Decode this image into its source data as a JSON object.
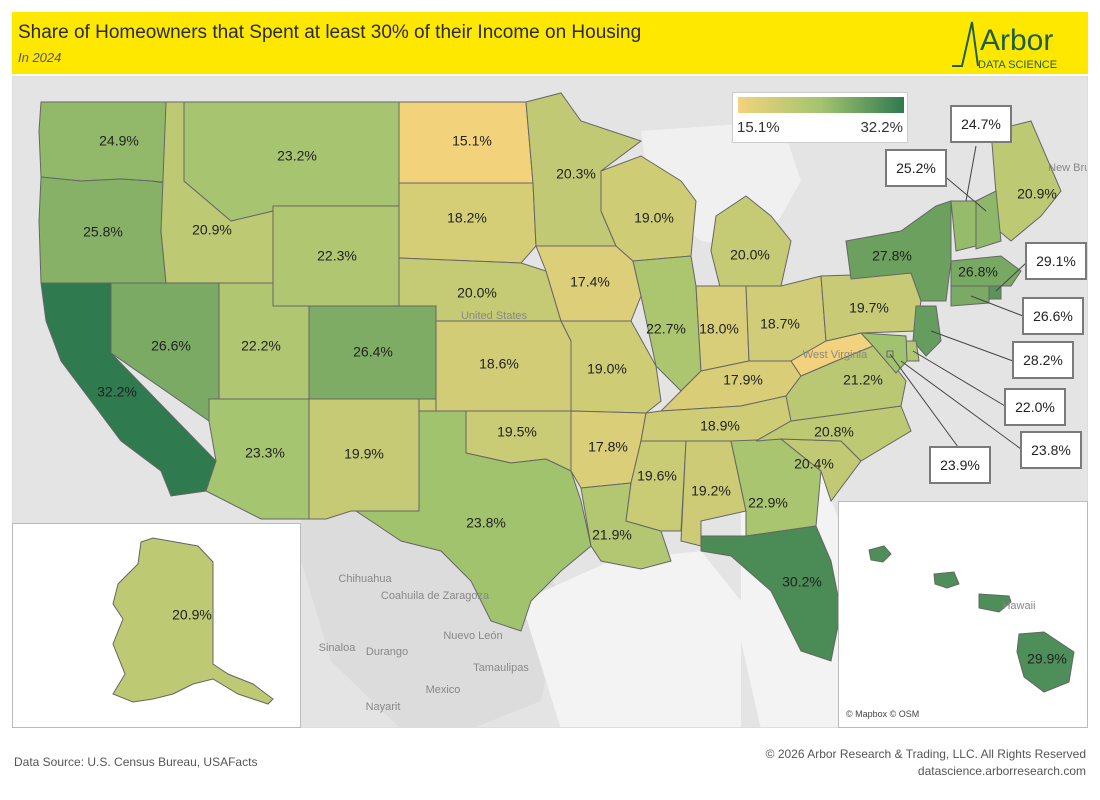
{
  "header": {
    "title": "Share of Homeowners that Spent at least 30% of their Income on Housing",
    "subtitle": "In 2024",
    "logo_text": "Arbor",
    "logo_subtext": "DATA SCIENCE"
  },
  "legend": {
    "min_label": "15.1%",
    "max_label": "32.2%",
    "min_value": 15.1,
    "max_value": 32.2,
    "color_low": "#f3d27c",
    "color_mid": "#a3c46f",
    "color_high": "#2f7a4f"
  },
  "basemap_labels": {
    "united_states": "United States",
    "mexico": "Mexico",
    "chihuahua": "Chihuahua",
    "coahuila": "Coahuila de Zaragoza",
    "nuevo_leon": "Nuevo León",
    "sinaloa": "Sinaloa",
    "durango": "Durango",
    "tamaulipas": "Tamaulipas",
    "nayarit": "Nayarit",
    "new_brunswick": "New Brunsw",
    "west_virginia": "West Virginia",
    "hawaii": "Hawaii"
  },
  "attribution": "© Mapbox © OSM",
  "footer": {
    "source": "Data Source: U.S. Census Bureau, USAFacts",
    "copyright": "© 2026 Arbor Research & Trading, LLC. All Rights Reserved",
    "website": "datascience.arborresearch.com"
  },
  "states": [
    {
      "id": "WA",
      "value": 24.9,
      "label": "24.9%"
    },
    {
      "id": "OR",
      "value": 25.8,
      "label": "25.8%"
    },
    {
      "id": "CA",
      "value": 32.2,
      "label": "32.2%"
    },
    {
      "id": "ID",
      "value": 20.9,
      "label": "20.9%"
    },
    {
      "id": "NV",
      "value": 26.6,
      "label": "26.6%"
    },
    {
      "id": "MT",
      "value": 23.2,
      "label": "23.2%"
    },
    {
      "id": "WY",
      "value": 22.3,
      "label": "22.3%"
    },
    {
      "id": "UT",
      "value": 22.2,
      "label": "22.2%"
    },
    {
      "id": "AZ",
      "value": 23.3,
      "label": "23.3%"
    },
    {
      "id": "CO",
      "value": 26.4,
      "label": "26.4%"
    },
    {
      "id": "NM",
      "value": 19.9,
      "label": "19.9%"
    },
    {
      "id": "ND",
      "value": 15.1,
      "label": "15.1%"
    },
    {
      "id": "SD",
      "value": 18.2,
      "label": "18.2%"
    },
    {
      "id": "NE",
      "value": 20.0,
      "label": "20.0%"
    },
    {
      "id": "KS",
      "value": 18.6,
      "label": "18.6%"
    },
    {
      "id": "OK",
      "value": 19.5,
      "label": "19.5%"
    },
    {
      "id": "TX",
      "value": 23.8,
      "label": "23.8%"
    },
    {
      "id": "MN",
      "value": 20.3,
      "label": "20.3%"
    },
    {
      "id": "IA",
      "value": 17.4,
      "label": "17.4%"
    },
    {
      "id": "MO",
      "value": 19.0,
      "label": "19.0%"
    },
    {
      "id": "AR",
      "value": 17.8,
      "label": "17.8%"
    },
    {
      "id": "LA",
      "value": 21.9,
      "label": "21.9%"
    },
    {
      "id": "WI",
      "value": 19.0,
      "label": "19.0%"
    },
    {
      "id": "IL",
      "value": 22.7,
      "label": "22.7%"
    },
    {
      "id": "MI",
      "value": 20.0,
      "label": "20.0%"
    },
    {
      "id": "IN",
      "value": 18.0,
      "label": "18.0%"
    },
    {
      "id": "OH",
      "value": 18.7,
      "label": "18.7%"
    },
    {
      "id": "KY",
      "value": 17.9,
      "label": "17.9%"
    },
    {
      "id": "TN",
      "value": 18.9,
      "label": "18.9%"
    },
    {
      "id": "MS",
      "value": 19.6,
      "label": "19.6%"
    },
    {
      "id": "AL",
      "value": 19.2,
      "label": "19.2%"
    },
    {
      "id": "GA",
      "value": 22.9,
      "label": "22.9%"
    },
    {
      "id": "FL",
      "value": 30.2,
      "label": "30.2%"
    },
    {
      "id": "SC",
      "value": 20.4,
      "label": "20.4%"
    },
    {
      "id": "NC",
      "value": 20.8,
      "label": "20.8%"
    },
    {
      "id": "VA",
      "value": 21.2,
      "label": "21.2%"
    },
    {
      "id": "WV",
      "value": 15.2,
      "label": ""
    },
    {
      "id": "PA",
      "value": 19.7,
      "label": "19.7%"
    },
    {
      "id": "NY",
      "value": 27.8,
      "label": "27.8%"
    },
    {
      "id": "ME",
      "value": 20.9,
      "label": "20.9%"
    },
    {
      "id": "VT",
      "value": 24.7,
      "label": "24.7%"
    },
    {
      "id": "NH",
      "value": 25.2,
      "label": "25.2%"
    },
    {
      "id": "MA",
      "value": 26.8,
      "label": "26.8%"
    },
    {
      "id": "RI",
      "value": 29.1,
      "label": "29.1%"
    },
    {
      "id": "CT",
      "value": 26.6,
      "label": "26.6%"
    },
    {
      "id": "NJ",
      "value": 28.2,
      "label": "28.2%"
    },
    {
      "id": "DE",
      "value": 22.0,
      "label": "22.0%"
    },
    {
      "id": "MD",
      "value": 23.8,
      "label": "23.8%"
    },
    {
      "id": "DC",
      "value": 23.9,
      "label": "23.9%"
    },
    {
      "id": "AK",
      "value": 20.9,
      "label": "20.9%"
    },
    {
      "id": "HI",
      "value": 29.9,
      "label": "29.9%"
    }
  ],
  "callouts": [
    {
      "id": "VT",
      "label": "24.7%"
    },
    {
      "id": "NH",
      "label": "25.2%"
    },
    {
      "id": "RI",
      "label": "29.1%"
    },
    {
      "id": "CT",
      "label": "26.6%"
    },
    {
      "id": "NJ",
      "label": "28.2%"
    },
    {
      "id": "DE",
      "label": "22.0%"
    },
    {
      "id": "MD",
      "label": "23.8%"
    },
    {
      "id": "DC",
      "label": "23.9%"
    }
  ]
}
